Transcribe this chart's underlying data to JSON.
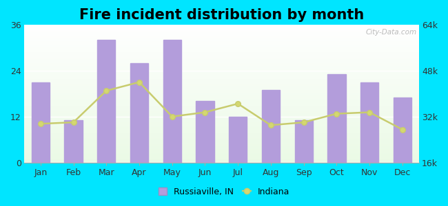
{
  "title": "Fire incident distribution by month",
  "months": [
    "Jan",
    "Feb",
    "Mar",
    "Apr",
    "May",
    "Jun",
    "Jul",
    "Aug",
    "Sep",
    "Oct",
    "Nov",
    "Dec"
  ],
  "bar_values": [
    21,
    11,
    32,
    26,
    32,
    16,
    12,
    19,
    11,
    23,
    21,
    17
  ],
  "line_values": [
    29500,
    30000,
    41000,
    44000,
    32000,
    33500,
    36500,
    29000,
    30000,
    33000,
    33500,
    27500
  ],
  "bar_color": "#b39ddb",
  "line_color": "#c8cc6e",
  "line_marker_face": "#d4d870",
  "outer_bg": "#00e5ff",
  "ylim_left": [
    0,
    36
  ],
  "ylim_right": [
    16000,
    64000
  ],
  "yticks_left": [
    0,
    12,
    24,
    36
  ],
  "yticks_right": [
    16000,
    32000,
    48000,
    64000
  ],
  "ytick_right_labels": [
    "16k",
    "32k",
    "48k",
    "64k"
  ],
  "legend_russiaville": "Russiaville, IN",
  "legend_indiana": "Indiana",
  "watermark": "City-Data.com",
  "title_fontsize": 15,
  "legend_fontsize": 9
}
